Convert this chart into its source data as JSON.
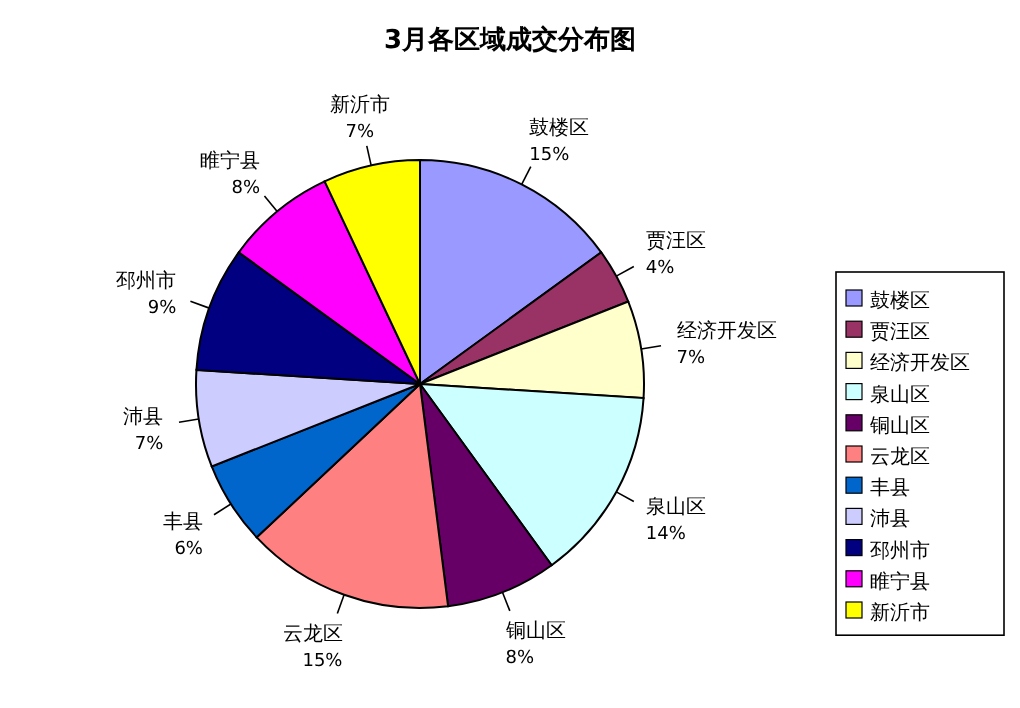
{
  "chart_data": {
    "type": "pie",
    "title": "3月各区域成交分布图",
    "categories": [
      "鼓楼区",
      "贾汪区",
      "经济开发区",
      "泉山区",
      "铜山区",
      "云龙区",
      "丰县",
      "沛县",
      "邳州市",
      "睢宁县",
      "新沂市"
    ],
    "values": [
      15,
      4,
      7,
      14,
      8,
      15,
      6,
      7,
      9,
      8,
      7
    ],
    "colors": [
      "#9999ff",
      "#993366",
      "#ffffcc",
      "#ccffff",
      "#660066",
      "#ff8080",
      "#0066cc",
      "#ccccff",
      "#000080",
      "#ff00ff",
      "#ffff00"
    ],
    "value_labels": [
      "15%",
      "4%",
      "7%",
      "14%",
      "8%",
      "15%",
      "6%",
      "7%",
      "9%",
      "8%",
      "7%"
    ],
    "legend": "right"
  }
}
